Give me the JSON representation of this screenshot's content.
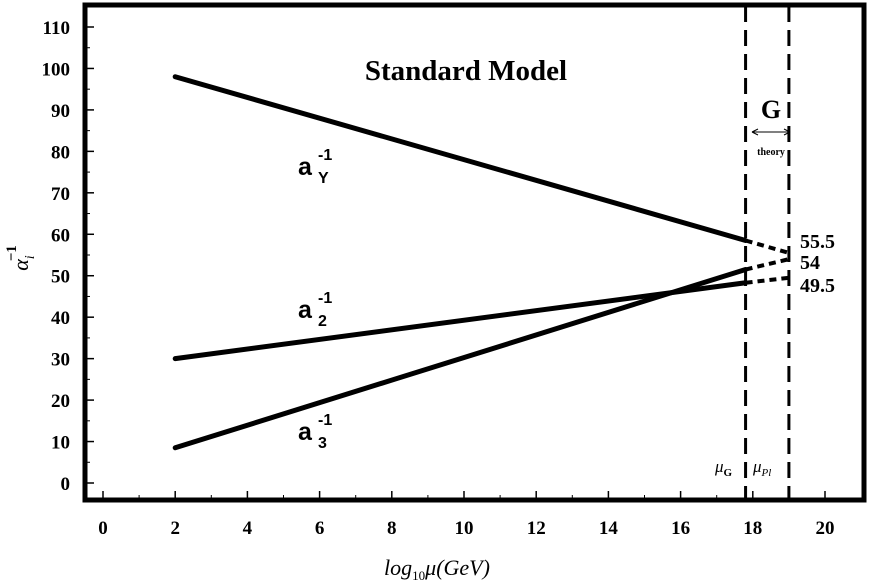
{
  "chart_data": {
    "type": "line",
    "title": "Standard Model",
    "xlabel": "log10μ(GeV)",
    "ylabel": "α_i^-1",
    "xlim": [
      -0.8,
      20.8
    ],
    "ylim": [
      -3,
      115
    ],
    "xticks": [
      0,
      2,
      4,
      6,
      8,
      10,
      12,
      14,
      16,
      18,
      20
    ],
    "yticks": [
      0,
      10,
      20,
      30,
      40,
      50,
      60,
      70,
      80,
      90,
      100,
      110
    ],
    "grid": false,
    "series": [
      {
        "name": "a_Y^-1",
        "label_main": "a",
        "label_sub": "Y",
        "label_sup": "-1",
        "x": [
          2,
          17.8
        ],
        "y": [
          98,
          58.5
        ],
        "extension": {
          "x": [
            17.8,
            19
          ],
          "y": [
            58.5,
            55.5
          ]
        },
        "end_label": "55.5"
      },
      {
        "name": "a_2^-1",
        "label_main": "a",
        "label_sub": "2",
        "label_sup": "-1",
        "x": [
          2,
          17.8
        ],
        "y": [
          30,
          48.3
        ],
        "extension": {
          "x": [
            17.8,
            19
          ],
          "y": [
            48.3,
            49.5
          ]
        },
        "end_label": "49.5"
      },
      {
        "name": "a_3^-1",
        "label_main": "a",
        "label_sub": "3",
        "label_sup": "-1",
        "x": [
          2,
          17.8
        ],
        "y": [
          8.5,
          51.5
        ],
        "extension": {
          "x": [
            17.8,
            19
          ],
          "y": [
            51.5,
            54
          ]
        },
        "end_label": "54"
      }
    ],
    "vertical_lines": [
      {
        "x": 17.8,
        "style": "dashed",
        "label": "μG"
      },
      {
        "x": 19,
        "style": "dashed",
        "label": "μPl"
      }
    ],
    "annotation": {
      "text": "G",
      "subscript": "theory",
      "from": 17.8,
      "to": 19
    }
  }
}
